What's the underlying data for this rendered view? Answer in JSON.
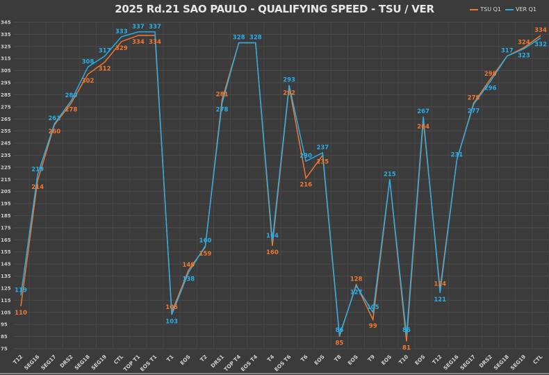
{
  "chart_data": {
    "type": "line",
    "title": "2025 Rd.21 SAO PAULO - QUALIFYING SPEED - TSU / VER",
    "xlabel": "",
    "ylabel": "",
    "ylim": [
      75,
      345
    ],
    "ytick_step": 10,
    "grid": true,
    "legend_position": "top-right",
    "categories": [
      "T12",
      "SEG16",
      "SEG17",
      "DRS2",
      "SEG18",
      "SEG19",
      "CTL",
      "TOP T1",
      "EOS T1",
      "T1",
      "EOS",
      "T2",
      "DRS1",
      "TOP T4",
      "EOS T4",
      "T4",
      "EOS T6",
      "T6",
      "EOS",
      "T8",
      "EOS",
      "T9",
      "EOS",
      "T10",
      "EOS",
      "T12",
      "SEG16",
      "SEG17",
      "DRS2",
      "SEG18",
      "SEG19",
      "CTL"
    ],
    "series": [
      {
        "name": "TSU Q1",
        "color": "#f07830",
        "values": [
          110,
          214,
          260,
          278,
          302,
          312,
          329,
          334,
          334,
          105,
          140,
          159,
          281,
          328,
          328,
          160,
          292,
          216,
          235,
          85,
          128,
          99,
          215,
          81,
          264,
          124,
          231,
          278,
          298,
          317,
          324,
          334
        ]
      },
      {
        "name": "VER Q1",
        "color": "#29aee8",
        "values": [
          119,
          219,
          261,
          280,
          308,
          317,
          333,
          337,
          337,
          103,
          138,
          160,
          278,
          328,
          328,
          164,
          293,
          230,
          237,
          86,
          127,
          105,
          215,
          86,
          267,
          121,
          231,
          277,
          296,
          317,
          323,
          332
        ]
      }
    ]
  }
}
